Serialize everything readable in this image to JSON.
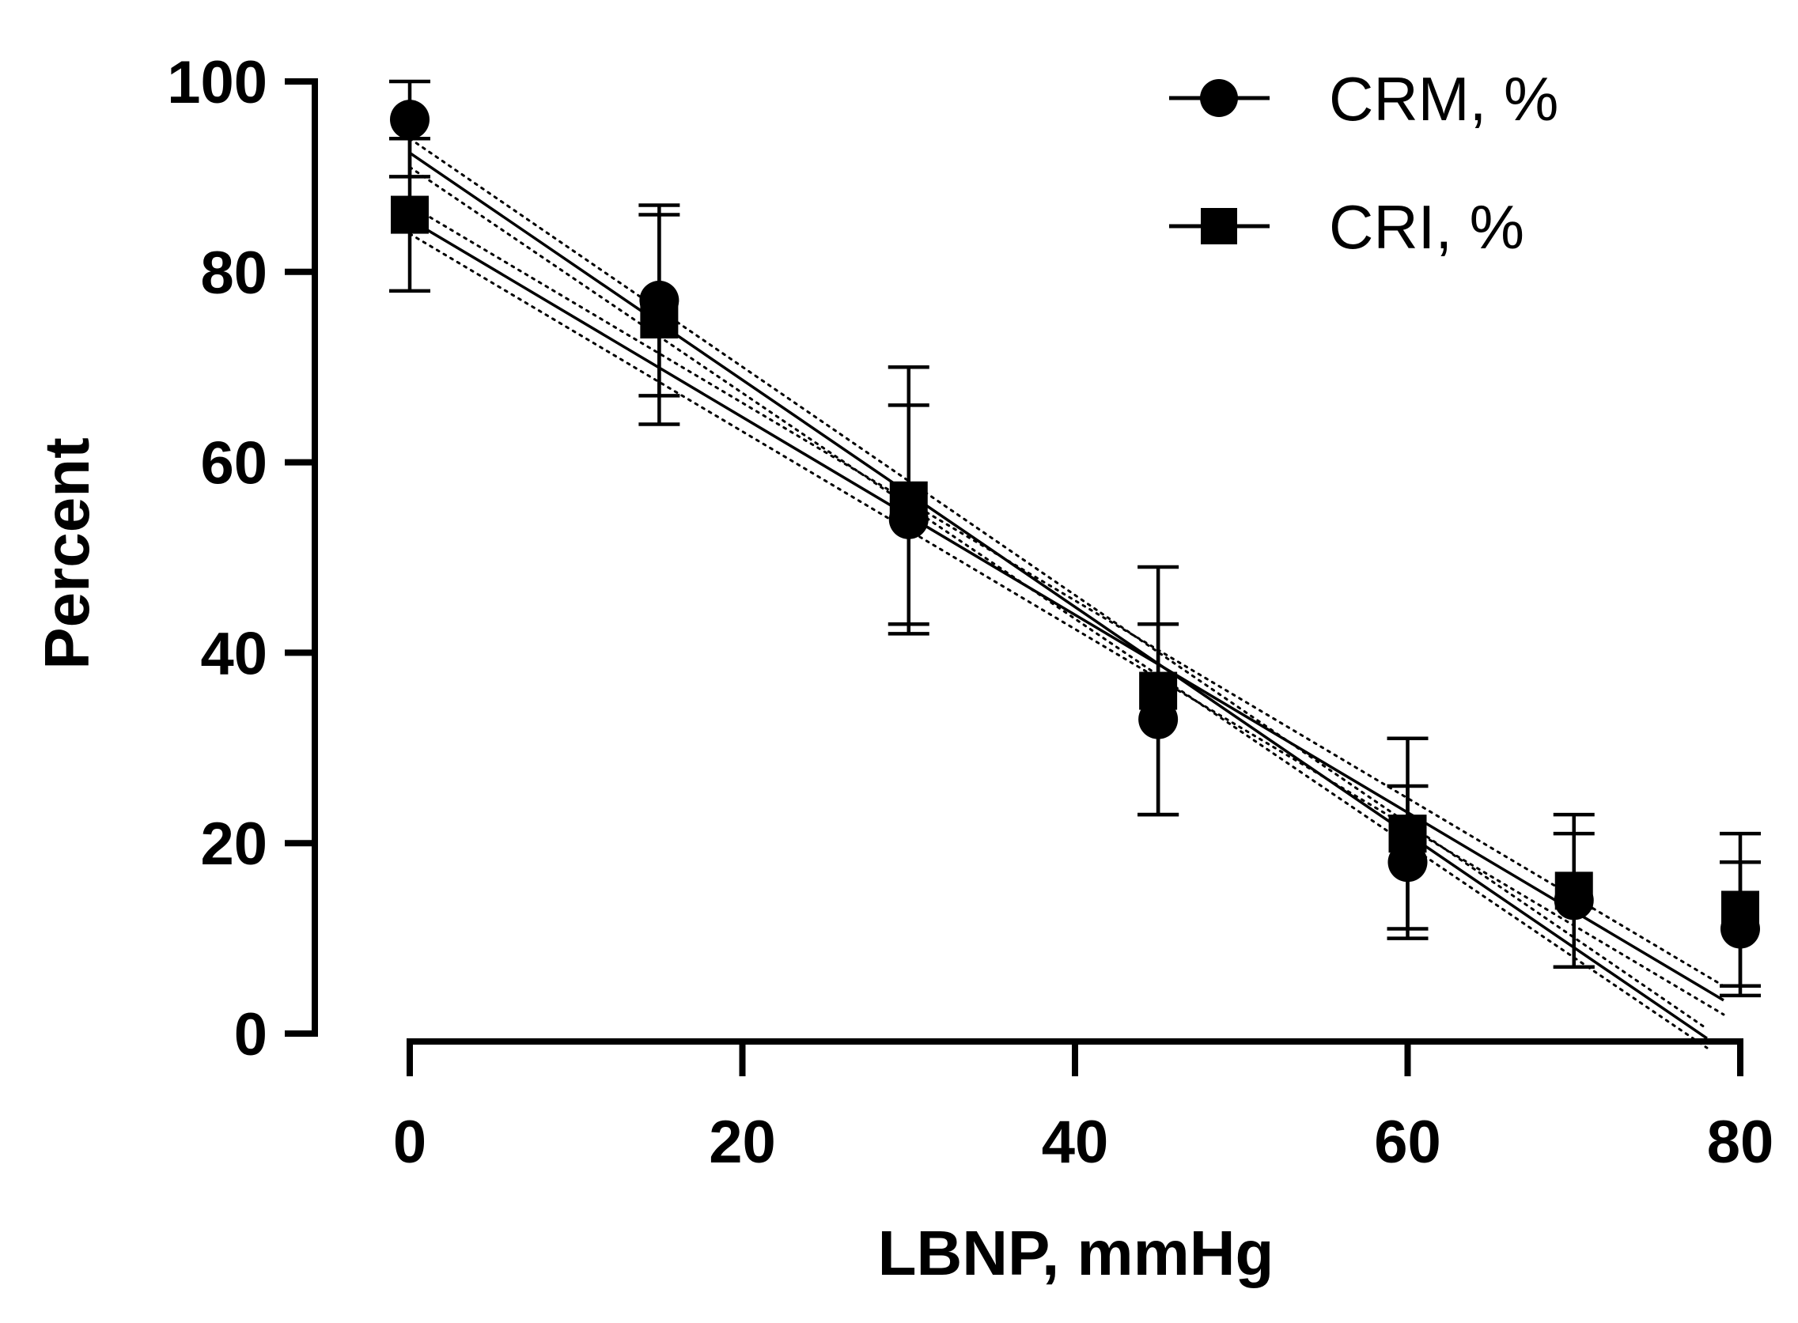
{
  "chart_data": {
    "type": "scatter",
    "title": "",
    "xlabel": "LBNP, mmHg",
    "ylabel": "Percent",
    "xlim": [
      0,
      80
    ],
    "ylim": [
      0,
      100
    ],
    "xticks": [
      "0",
      "20",
      "40",
      "60",
      "80"
    ],
    "yticks": [
      "0",
      "20",
      "40",
      "60",
      "80",
      "100"
    ],
    "legend_position": "top-right",
    "series": [
      {
        "name": "CRM, %",
        "marker": "circle",
        "x": [
          0,
          15,
          30,
          45,
          60,
          70,
          80
        ],
        "y": [
          96,
          77,
          54,
          33,
          18,
          14,
          11
        ],
        "err_upper": [
          100,
          86,
          66,
          43,
          26,
          21,
          18
        ],
        "err_lower": [
          90,
          67,
          42,
          23,
          11,
          7,
          5
        ],
        "fit": {
          "x0": 0,
          "y0": 92.5,
          "x1": 78,
          "y1": -0.5
        },
        "ci": {
          "upper": [
            94,
            0.5
          ],
          "lower": [
            91,
            -1.5
          ]
        }
      },
      {
        "name": "CRI, %",
        "marker": "square",
        "x": [
          0,
          15,
          30,
          45,
          60,
          70,
          80
        ],
        "y": [
          86,
          75,
          56,
          36,
          21,
          15,
          13
        ],
        "err_upper": [
          94,
          87,
          70,
          49,
          31,
          23,
          21
        ],
        "err_lower": [
          78,
          64,
          43,
          23,
          10,
          7,
          4
        ],
        "fit": {
          "x0": 0,
          "y0": 85.5,
          "x1": 79,
          "y1": 3.5
        },
        "ci": {
          "upper": [
            87,
            5
          ],
          "lower": [
            84,
            2
          ]
        }
      }
    ]
  }
}
